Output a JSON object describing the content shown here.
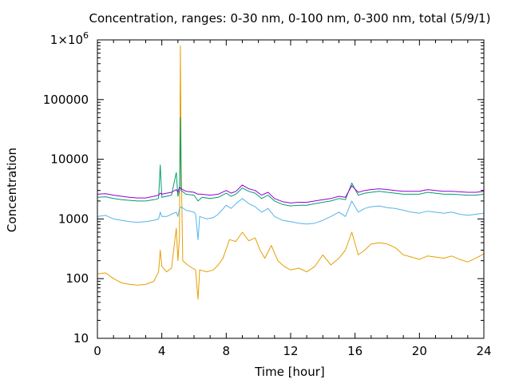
{
  "chart_data": {
    "type": "line",
    "title": "Concentration, ranges: 0-30 nm, 0-100 nm, 0-300 nm, total (5/9/1)",
    "xlabel": "Time [hour]",
    "ylabel": "Concentration",
    "xlim": [
      0,
      24
    ],
    "ylim": [
      10,
      1000000
    ],
    "yscale": "log",
    "grid": false,
    "legend": "none",
    "x_ticks": [
      0,
      4,
      8,
      12,
      16,
      20,
      24
    ],
    "x_tick_labels": [
      "0",
      "4",
      "8",
      "12",
      "16",
      "20",
      "24"
    ],
    "y_ticks": [
      10,
      100,
      1000,
      10000,
      100000,
      1000000
    ],
    "y_tick_labels": [
      "10",
      "100",
      "1000",
      "10000",
      "100000",
      "1×10^6"
    ],
    "series": [
      {
        "color": "#e69f00",
        "points": [
          [
            0,
            120
          ],
          [
            0.5,
            125
          ],
          [
            1,
            100
          ],
          [
            1.5,
            85
          ],
          [
            2,
            80
          ],
          [
            2.5,
            78
          ],
          [
            3,
            80
          ],
          [
            3.5,
            90
          ],
          [
            3.8,
            130
          ],
          [
            3.9,
            300
          ],
          [
            4.0,
            160
          ],
          [
            4.3,
            130
          ],
          [
            4.6,
            150
          ],
          [
            4.9,
            700
          ],
          [
            5.0,
            200
          ],
          [
            5.1,
            500
          ],
          [
            5.15,
            800000
          ],
          [
            5.2,
            9000
          ],
          [
            5.3,
            200
          ],
          [
            5.6,
            170
          ],
          [
            5.9,
            150
          ],
          [
            6.1,
            140
          ],
          [
            6.25,
            45
          ],
          [
            6.35,
            140
          ],
          [
            6.8,
            130
          ],
          [
            7.2,
            140
          ],
          [
            7.5,
            170
          ],
          [
            7.8,
            220
          ],
          [
            8.2,
            450
          ],
          [
            8.6,
            420
          ],
          [
            9.0,
            600
          ],
          [
            9.4,
            430
          ],
          [
            9.8,
            480
          ],
          [
            10.1,
            300
          ],
          [
            10.4,
            220
          ],
          [
            10.8,
            360
          ],
          [
            11.2,
            200
          ],
          [
            11.6,
            160
          ],
          [
            12.0,
            140
          ],
          [
            12.5,
            150
          ],
          [
            13.0,
            130
          ],
          [
            13.5,
            160
          ],
          [
            14.0,
            250
          ],
          [
            14.5,
            170
          ],
          [
            15.0,
            220
          ],
          [
            15.4,
            300
          ],
          [
            15.8,
            600
          ],
          [
            16.2,
            250
          ],
          [
            16.6,
            300
          ],
          [
            17.0,
            380
          ],
          [
            17.5,
            400
          ],
          [
            18.0,
            380
          ],
          [
            18.5,
            330
          ],
          [
            19.0,
            250
          ],
          [
            19.5,
            230
          ],
          [
            20.0,
            210
          ],
          [
            20.5,
            240
          ],
          [
            21.0,
            230
          ],
          [
            21.5,
            220
          ],
          [
            22.0,
            240
          ],
          [
            22.5,
            210
          ],
          [
            23.0,
            190
          ],
          [
            23.5,
            220
          ],
          [
            24.0,
            260
          ]
        ]
      },
      {
        "color": "#56b4e9",
        "points": [
          [
            0,
            1100
          ],
          [
            0.5,
            1150
          ],
          [
            1,
            1000
          ],
          [
            1.5,
            950
          ],
          [
            2,
            900
          ],
          [
            2.5,
            880
          ],
          [
            3,
            900
          ],
          [
            3.5,
            950
          ],
          [
            3.8,
            1000
          ],
          [
            3.9,
            1300
          ],
          [
            4.0,
            1100
          ],
          [
            4.3,
            1100
          ],
          [
            4.6,
            1200
          ],
          [
            4.9,
            1300
          ],
          [
            5.0,
            1100
          ],
          [
            5.1,
            1500
          ],
          [
            5.2,
            1600
          ],
          [
            5.5,
            1400
          ],
          [
            6.0,
            1300
          ],
          [
            6.1,
            1200
          ],
          [
            6.25,
            450
          ],
          [
            6.35,
            1100
          ],
          [
            6.8,
            1000
          ],
          [
            7.2,
            1050
          ],
          [
            7.5,
            1200
          ],
          [
            8.0,
            1700
          ],
          [
            8.3,
            1500
          ],
          [
            8.6,
            1800
          ],
          [
            9.0,
            2200
          ],
          [
            9.4,
            1800
          ],
          [
            9.8,
            1600
          ],
          [
            10.2,
            1300
          ],
          [
            10.6,
            1500
          ],
          [
            11.0,
            1100
          ],
          [
            11.5,
            950
          ],
          [
            12.0,
            900
          ],
          [
            12.5,
            850
          ],
          [
            13.0,
            820
          ],
          [
            13.5,
            850
          ],
          [
            14.0,
            950
          ],
          [
            14.5,
            1100
          ],
          [
            15.0,
            1300
          ],
          [
            15.4,
            1100
          ],
          [
            15.8,
            2000
          ],
          [
            16.2,
            1300
          ],
          [
            16.6,
            1500
          ],
          [
            17.0,
            1600
          ],
          [
            17.5,
            1650
          ],
          [
            18.0,
            1550
          ],
          [
            18.5,
            1500
          ],
          [
            19.0,
            1400
          ],
          [
            19.5,
            1300
          ],
          [
            20.0,
            1250
          ],
          [
            20.5,
            1350
          ],
          [
            21.0,
            1300
          ],
          [
            21.5,
            1250
          ],
          [
            22.0,
            1300
          ],
          [
            22.5,
            1200
          ],
          [
            23.0,
            1150
          ],
          [
            23.5,
            1200
          ],
          [
            24.0,
            1250
          ]
        ]
      },
      {
        "color": "#009e73",
        "points": [
          [
            0,
            2300
          ],
          [
            0.5,
            2350
          ],
          [
            1,
            2200
          ],
          [
            1.5,
            2100
          ],
          [
            2,
            2050
          ],
          [
            2.5,
            2000
          ],
          [
            3,
            2000
          ],
          [
            3.5,
            2100
          ],
          [
            3.8,
            2200
          ],
          [
            3.9,
            8000
          ],
          [
            4.0,
            2300
          ],
          [
            4.3,
            2400
          ],
          [
            4.6,
            2500
          ],
          [
            4.9,
            6000
          ],
          [
            5.0,
            2400
          ],
          [
            5.1,
            3000
          ],
          [
            5.15,
            50000
          ],
          [
            5.2,
            3000
          ],
          [
            5.5,
            2600
          ],
          [
            6.0,
            2500
          ],
          [
            6.25,
            2000
          ],
          [
            6.5,
            2300
          ],
          [
            7.0,
            2200
          ],
          [
            7.5,
            2300
          ],
          [
            8.0,
            2700
          ],
          [
            8.3,
            2400
          ],
          [
            8.6,
            2600
          ],
          [
            9.0,
            3300
          ],
          [
            9.4,
            2900
          ],
          [
            9.8,
            2700
          ],
          [
            10.2,
            2200
          ],
          [
            10.6,
            2500
          ],
          [
            11.0,
            2000
          ],
          [
            11.5,
            1750
          ],
          [
            12.0,
            1650
          ],
          [
            12.5,
            1700
          ],
          [
            13.0,
            1700
          ],
          [
            13.5,
            1800
          ],
          [
            14.0,
            1900
          ],
          [
            14.5,
            2000
          ],
          [
            15.0,
            2200
          ],
          [
            15.4,
            2100
          ],
          [
            15.8,
            4000
          ],
          [
            16.2,
            2500
          ],
          [
            16.6,
            2700
          ],
          [
            17.0,
            2800
          ],
          [
            17.5,
            2900
          ],
          [
            18.0,
            2800
          ],
          [
            18.5,
            2700
          ],
          [
            19.0,
            2600
          ],
          [
            19.5,
            2600
          ],
          [
            20.0,
            2600
          ],
          [
            20.5,
            2800
          ],
          [
            21.0,
            2700
          ],
          [
            21.5,
            2600
          ],
          [
            22.0,
            2600
          ],
          [
            22.5,
            2550
          ],
          [
            23.0,
            2500
          ],
          [
            23.5,
            2500
          ],
          [
            24.0,
            2600
          ]
        ]
      },
      {
        "color": "#9400d3",
        "points": [
          [
            0,
            2600
          ],
          [
            0.5,
            2650
          ],
          [
            1,
            2500
          ],
          [
            1.5,
            2400
          ],
          [
            2,
            2300
          ],
          [
            2.5,
            2250
          ],
          [
            3,
            2250
          ],
          [
            3.5,
            2400
          ],
          [
            3.8,
            2500
          ],
          [
            3.9,
            2700
          ],
          [
            4.0,
            2600
          ],
          [
            4.3,
            2700
          ],
          [
            4.6,
            2800
          ],
          [
            4.9,
            3100
          ],
          [
            5.0,
            2800
          ],
          [
            5.1,
            3400
          ],
          [
            5.2,
            3200
          ],
          [
            5.5,
            2900
          ],
          [
            6.0,
            2800
          ],
          [
            6.25,
            2600
          ],
          [
            6.5,
            2600
          ],
          [
            7.0,
            2500
          ],
          [
            7.5,
            2600
          ],
          [
            8.0,
            3000
          ],
          [
            8.3,
            2700
          ],
          [
            8.6,
            2900
          ],
          [
            9.0,
            3700
          ],
          [
            9.4,
            3200
          ],
          [
            9.8,
            3000
          ],
          [
            10.2,
            2500
          ],
          [
            10.6,
            2800
          ],
          [
            11.0,
            2200
          ],
          [
            11.5,
            1950
          ],
          [
            12.0,
            1850
          ],
          [
            12.5,
            1900
          ],
          [
            13.0,
            1900
          ],
          [
            13.5,
            2000
          ],
          [
            14.0,
            2100
          ],
          [
            14.5,
            2200
          ],
          [
            15.0,
            2400
          ],
          [
            15.4,
            2300
          ],
          [
            15.8,
            3600
          ],
          [
            16.2,
            2800
          ],
          [
            16.6,
            3000
          ],
          [
            17.0,
            3100
          ],
          [
            17.5,
            3200
          ],
          [
            18.0,
            3100
          ],
          [
            18.5,
            3000
          ],
          [
            19.0,
            2900
          ],
          [
            19.5,
            2900
          ],
          [
            20.0,
            2900
          ],
          [
            20.5,
            3100
          ],
          [
            21.0,
            3000
          ],
          [
            21.5,
            2900
          ],
          [
            22.0,
            2900
          ],
          [
            22.5,
            2850
          ],
          [
            23.0,
            2800
          ],
          [
            23.5,
            2800
          ],
          [
            24.0,
            2900
          ]
        ]
      }
    ]
  }
}
